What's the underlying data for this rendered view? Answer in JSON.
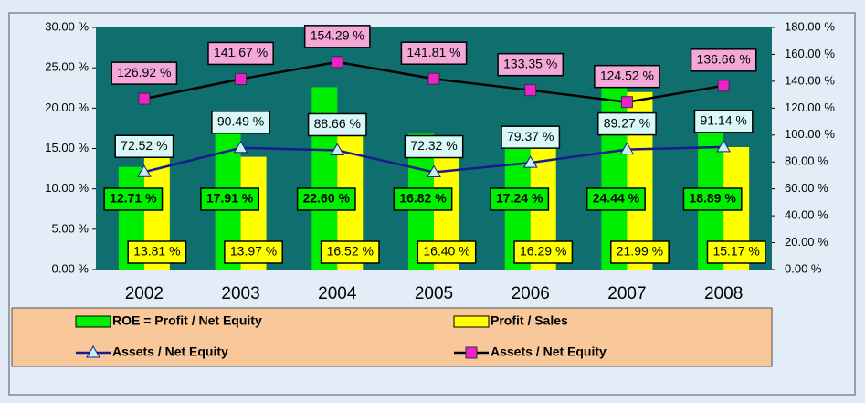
{
  "chart_data": {
    "type": "bar",
    "categories": [
      "2002",
      "2003",
      "2004",
      "2005",
      "2006",
      "2007",
      "2008"
    ],
    "ylim": [
      0,
      30
    ],
    "yticks": [
      {
        "value": 0,
        "label": "0.00 %"
      },
      {
        "value": 5,
        "label": "5.00 %"
      },
      {
        "value": 10,
        "label": "10.00 %"
      },
      {
        "value": 15,
        "label": "15.00 %"
      },
      {
        "value": 20,
        "label": "20.00 %"
      },
      {
        "value": 25,
        "label": "25.00 %"
      },
      {
        "value": 30,
        "label": "30.00 %"
      }
    ],
    "y2lim": [
      0,
      180
    ],
    "y2ticks": [
      {
        "value": 0,
        "label": "0.00 %"
      },
      {
        "value": 20,
        "label": "20.00 %"
      },
      {
        "value": 40,
        "label": "40.00 %"
      },
      {
        "value": 60,
        "label": "60.00 %"
      },
      {
        "value": 80,
        "label": "80.00 %"
      },
      {
        "value": 100,
        "label": "100.00 %"
      },
      {
        "value": 120,
        "label": "120.00 %"
      },
      {
        "value": 140,
        "label": "140.00 %"
      },
      {
        "value": 160,
        "label": "160.00 %"
      },
      {
        "value": 180,
        "label": "180.00 %"
      }
    ],
    "series": [
      {
        "name": "ROE = Profit / Net Equity",
        "type": "bar",
        "color": "#00ee00",
        "values": [
          12.71,
          17.91,
          22.6,
          16.82,
          17.24,
          24.44,
          18.89
        ],
        "value_labels": [
          "12.71 %",
          "17.91 %",
          "22.60 %",
          "16.82 %",
          "17.24 %",
          "24.44 %",
          "18.89 %"
        ]
      },
      {
        "name": "Profit / Sales",
        "type": "bar",
        "color": "#ffff00",
        "values": [
          13.81,
          13.97,
          16.52,
          16.4,
          16.29,
          21.99,
          15.17
        ],
        "value_labels": [
          "13.81 %",
          "13.97 %",
          "16.52 %",
          "16.40 %",
          "16.29 %",
          "21.99 %",
          "15.17 %"
        ]
      },
      {
        "name": "Assets / Net Equity",
        "type": "line",
        "axis": "y2",
        "color": "#1a1a8c",
        "marker": "triangle",
        "marker_color": "#c8f0f0",
        "values": [
          72.52,
          90.49,
          88.66,
          72.32,
          79.37,
          89.27,
          91.14
        ],
        "value_labels": [
          "72.52 %",
          "90.49 %",
          "88.66 %",
          "72.32 %",
          "79.37 %",
          "89.27 %",
          "91.14 %"
        ]
      },
      {
        "name": "Assets / Net Equity",
        "type": "line",
        "axis": "y2",
        "color": "#000000",
        "marker": "square",
        "marker_color": "#ee22cc",
        "values": [
          126.92,
          141.67,
          154.29,
          141.81,
          133.35,
          124.52,
          136.66
        ],
        "value_labels": [
          "126.92 %",
          "141.67 %",
          "154.29 %",
          "141.81 %",
          "133.35 %",
          "124.52 %",
          "136.66 %"
        ]
      }
    ]
  }
}
